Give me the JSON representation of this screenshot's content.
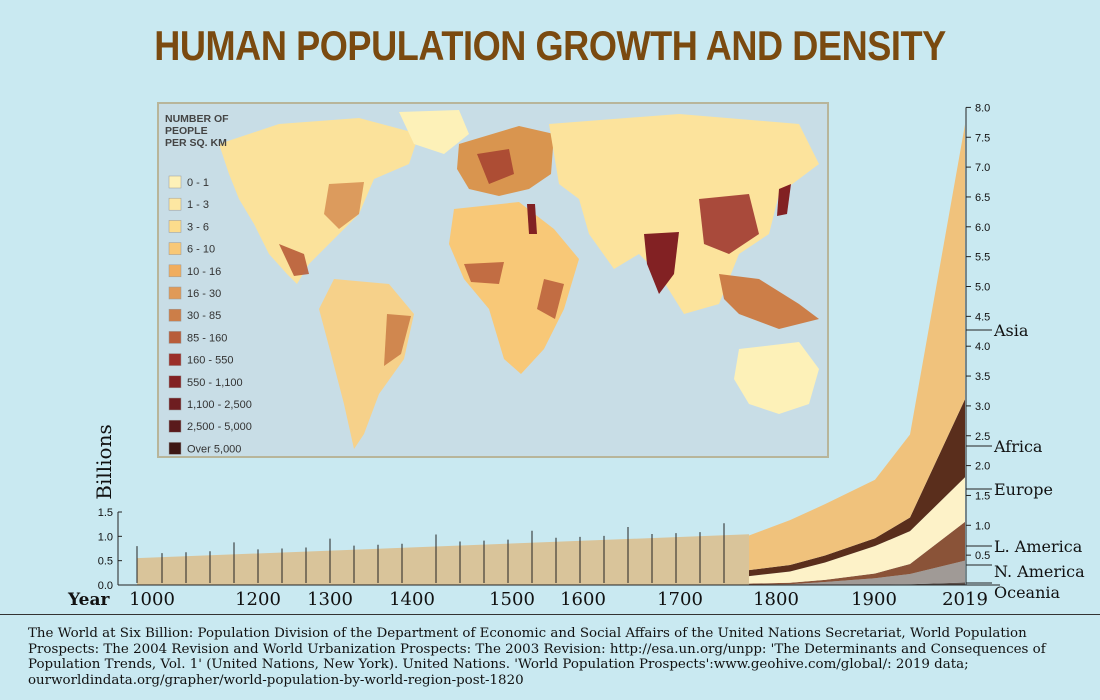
{
  "title": "HUMAN POPULATION GROWTH AND DENSITY",
  "map": {
    "legend_title": [
      "NUMBER OF",
      "PEOPLE",
      "PER SQ. KM"
    ],
    "legend": [
      {
        "label": "0 - 1",
        "color": "#fdf1b8"
      },
      {
        "label": "1 - 3",
        "color": "#fde7a2"
      },
      {
        "label": "3 - 6",
        "color": "#fcdc8c"
      },
      {
        "label": "6 - 10",
        "color": "#f8c877"
      },
      {
        "label": "10 - 16",
        "color": "#f0ad5e"
      },
      {
        "label": "16 - 30",
        "color": "#e09a58"
      },
      {
        "label": "30 - 85",
        "color": "#cc7e48"
      },
      {
        "label": "85 - 160",
        "color": "#b85d3a"
      },
      {
        "label": "160 - 550",
        "color": "#9a2f2a"
      },
      {
        "label": "550 - 1,100",
        "color": "#822123"
      },
      {
        "label": "1,100 - 2,500",
        "color": "#6e1d20"
      },
      {
        "label": "2,500 - 5,000",
        "color": "#5a1a1c"
      },
      {
        "label": "Over 5,000",
        "color": "#3e1714"
      }
    ]
  },
  "chart_data": {
    "type": "area",
    "ylabel": "Billions",
    "xlabel": "Year",
    "x_ticks": [
      1000,
      1200,
      1300,
      1400,
      1500,
      1600,
      1700,
      1800,
      1900,
      2019
    ],
    "left_axis": {
      "ticks": [
        "0.0",
        "0.5",
        "1.0",
        "1.5"
      ],
      "range": [
        0,
        1.5
      ]
    },
    "right_axis": {
      "ticks": [
        "0.5",
        "1.0",
        "1.5",
        "2.0",
        "2.5",
        "3.0",
        "3.5",
        "4.0",
        "4.5",
        "5.0",
        "5.5",
        "6.0",
        "6.5",
        "7.0",
        "7.5",
        "8.0"
      ],
      "range": [
        0,
        8.0
      ]
    },
    "early_period": {
      "x": [
        1000,
        1776
      ],
      "total": [
        0.45,
        0.85
      ],
      "color": "#d9c49a"
    },
    "x": [
      1776,
      1820,
      1870,
      1913,
      1950,
      2019
    ],
    "series": [
      {
        "name": "Oceania",
        "values": [
          0.002,
          0.002,
          0.004,
          0.006,
          0.013,
          0.042
        ],
        "color": "#5b4e48"
      },
      {
        "name": "N. America",
        "values": [
          0.004,
          0.011,
          0.046,
          0.107,
          0.172,
          0.367
        ],
        "color": "#a09a96"
      },
      {
        "name": "L. America",
        "values": [
          0.018,
          0.024,
          0.036,
          0.08,
          0.167,
          0.648
        ],
        "color": "#8a5338"
      },
      {
        "name": "Europe",
        "values": [
          0.125,
          0.19,
          0.29,
          0.46,
          0.55,
          0.747
        ],
        "color": "#fdf2c8"
      },
      {
        "name": "Africa",
        "values": [
          0.101,
          0.109,
          0.118,
          0.13,
          0.228,
          1.308
        ],
        "color": "#5a2e1c"
      },
      {
        "name": "Asia",
        "values": [
          0.58,
          0.75,
          0.86,
          0.98,
          1.39,
          4.601
        ],
        "color": "#f0c27c"
      }
    ]
  },
  "source": "The World at Six Billion: Population Division of the Department of Economic and Social Affairs of the United Nations Secretariat, World Population Prospects: The 2004 Revision and World Urbanization Prospects: The 2003 Revision: http://esa.un.org/unpp: 'The Determinants and Consequences of Population Trends, Vol. 1' (United Nations, New York). United Nations. 'World Population Prospects':www.geohive.com/global/: 2019 data; ourworldindata.org/grapher/world-population-by-world-region-post-1820"
}
